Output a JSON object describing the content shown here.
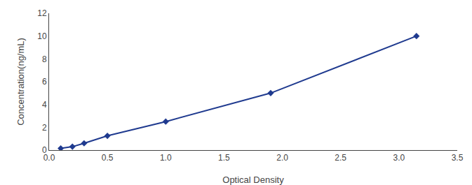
{
  "chart_data": {
    "type": "line",
    "x": [
      0.1,
      0.2,
      0.3,
      0.5,
      1.0,
      1.9,
      3.15
    ],
    "values": [
      0.15,
      0.3,
      0.6,
      1.25,
      2.5,
      5.0,
      10.0
    ],
    "color": "#1F3A8F",
    "marker": "diamond",
    "xlabel": "Optical Density",
    "ylabel": "Concentration(ng/mL)",
    "xlim": [
      0.0,
      3.5
    ],
    "ylim": [
      0,
      12
    ],
    "xticks": [
      {
        "value": 0.0,
        "label": "0.0"
      },
      0.5,
      {
        "value": 1.0,
        "label": "1.0"
      },
      1.5,
      {
        "value": 2.0,
        "label": "2.0"
      },
      2.5,
      {
        "value": 3.0,
        "label": "3.0"
      },
      3.5
    ],
    "yticks": [
      0,
      2,
      4,
      6,
      8,
      10,
      12
    ],
    "grid": false
  }
}
